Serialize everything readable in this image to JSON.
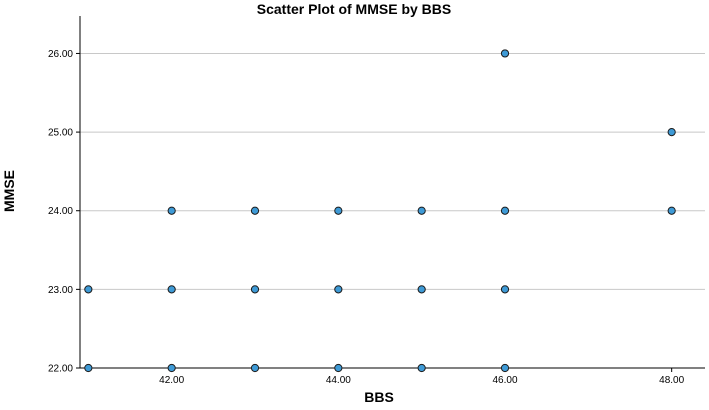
{
  "chart_data": {
    "type": "scatter",
    "title": "Scatter Plot of MMSE by BBS",
    "xlabel": "BBS",
    "ylabel": "MMSE",
    "xlim": [
      40.9,
      48.4
    ],
    "ylim": [
      22,
      26.4
    ],
    "x_ticks": [
      "42.00",
      "44.00",
      "46.00",
      "48.00"
    ],
    "y_ticks": [
      "22.00",
      "23.00",
      "24.00",
      "25.00",
      "26.00"
    ],
    "grid": "horizontal",
    "legend": "none",
    "point_color": "#3e9ad6",
    "points": [
      {
        "x": 41,
        "y": 23
      },
      {
        "x": 41,
        "y": 22
      },
      {
        "x": 42,
        "y": 24
      },
      {
        "x": 42,
        "y": 23
      },
      {
        "x": 42,
        "y": 22
      },
      {
        "x": 43,
        "y": 24
      },
      {
        "x": 43,
        "y": 23
      },
      {
        "x": 43,
        "y": 22
      },
      {
        "x": 44,
        "y": 24
      },
      {
        "x": 44,
        "y": 23
      },
      {
        "x": 44,
        "y": 22
      },
      {
        "x": 45,
        "y": 24
      },
      {
        "x": 45,
        "y": 23
      },
      {
        "x": 45,
        "y": 22
      },
      {
        "x": 46,
        "y": 26
      },
      {
        "x": 46,
        "y": 24
      },
      {
        "x": 46,
        "y": 23
      },
      {
        "x": 46,
        "y": 22
      },
      {
        "x": 48,
        "y": 25
      },
      {
        "x": 48,
        "y": 24
      }
    ]
  }
}
